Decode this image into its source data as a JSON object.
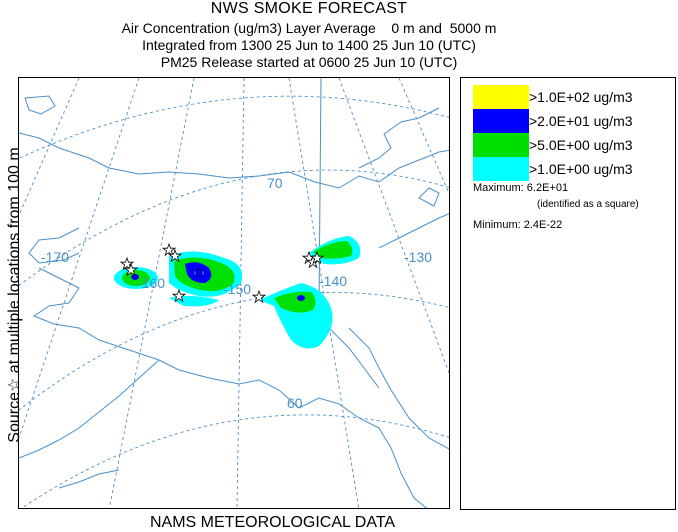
{
  "header": {
    "title": "NWS SMOKE FORECAST",
    "line1": "Air Concentration (ug/m3) Layer Average    0 m and  5000 m",
    "line2": "Integrated from 1300 25 Jun to 1400 25 Jun 10 (UTC)",
    "line3": "PM25 Release started at 0600 25 Jun 10 (UTC)"
  },
  "side_label": "Source☆ at multiple locations  from   100 m",
  "footer": "NAMS METEOROLOGICAL DATA",
  "map": {
    "longitude_labels": [
      "-170",
      "-160",
      "-150",
      "-140",
      "-130"
    ],
    "latitude_labels": [
      "70",
      "60"
    ],
    "colors": {
      "grid": "#4a90c8",
      "coast": "#4a90c8",
      "boundary": "#4a90c8",
      "source": "#000000"
    }
  },
  "legend": {
    "items": [
      {
        "label": ">1.0E+02 ug/m3",
        "color": "#ffff00"
      },
      {
        "label": ">2.0E+01 ug/m3",
        "color": "#0000ff"
      },
      {
        "label": ">5.0E+00 ug/m3",
        "color": "#00e000"
      },
      {
        "label": ">1.0E+00 ug/m3",
        "color": "#00ffff"
      }
    ],
    "maximum": "Maximum: 6.2E+01",
    "maximum_note": "(identified as a square)",
    "minimum": "Minimum: 2.4E-22"
  }
}
